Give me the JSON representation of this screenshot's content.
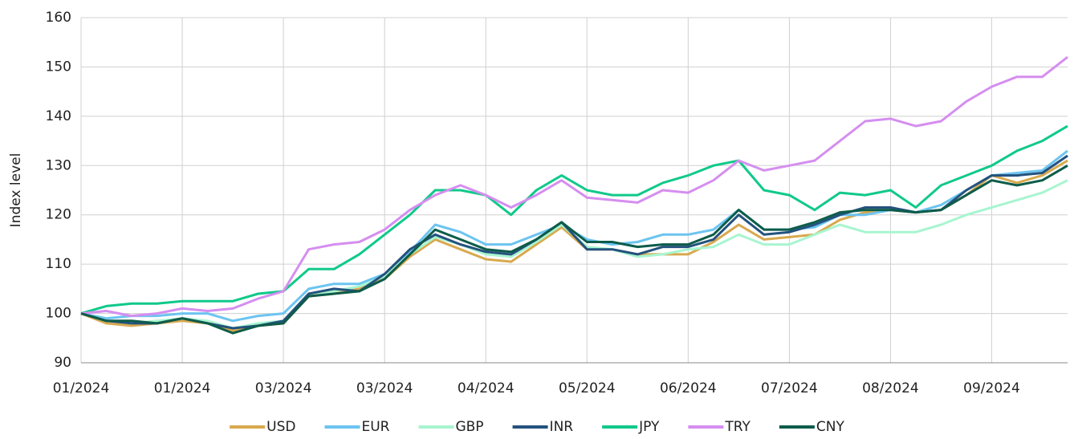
{
  "chart_data": {
    "type": "line",
    "y_label": "Index level",
    "categories": [
      "01/2024",
      null,
      null,
      null,
      "01/2024",
      null,
      null,
      null,
      "03/2024",
      null,
      null,
      null,
      "03/2024",
      null,
      null,
      null,
      "04/2024",
      null,
      null,
      null,
      "05/2024",
      null,
      null,
      null,
      "06/2024",
      null,
      null,
      null,
      "07/2024",
      null,
      null,
      null,
      "08/2024",
      null,
      null,
      null,
      "09/2024",
      null,
      null,
      null
    ],
    "ylim": [
      90,
      160
    ],
    "yticks": [
      90,
      100,
      110,
      120,
      130,
      140,
      150,
      160
    ],
    "grid": true,
    "series": [
      {
        "name": "USD",
        "color": "#d8a94e",
        "values": [
          100,
          98,
          97.5,
          98,
          98.5,
          98,
          96.5,
          97.5,
          98,
          103.5,
          104,
          105,
          107,
          111.5,
          115,
          113,
          111,
          110.5,
          114,
          117.5,
          113,
          113,
          112,
          112,
          112,
          114.5,
          118,
          115,
          115.5,
          116,
          119,
          120.5,
          121,
          120.5,
          121,
          124,
          128,
          126.5,
          128,
          131
        ]
      },
      {
        "name": "EUR",
        "color": "#6cc4f0",
        "values": [
          100,
          99,
          99.5,
          99.5,
          100,
          100,
          98.5,
          99.5,
          100,
          105,
          106,
          106,
          108,
          112.5,
          118,
          116.5,
          114,
          114,
          116,
          118,
          115,
          114,
          114.5,
          116,
          116,
          117,
          121,
          117,
          117,
          117.5,
          120,
          120,
          121,
          120.5,
          122,
          125,
          128,
          128.5,
          129,
          133
        ]
      },
      {
        "name": "GBP",
        "color": "#a8f5d0",
        "values": [
          100,
          98.5,
          98,
          98.5,
          99,
          98.5,
          97,
          98,
          98.5,
          104,
          104.5,
          105.5,
          107.5,
          112,
          115.5,
          114,
          112,
          111.5,
          114.5,
          118,
          113.5,
          113,
          111.5,
          112,
          113,
          113.5,
          116,
          114,
          114,
          116,
          118,
          116.5,
          116.5,
          116.5,
          118,
          120,
          121.5,
          123,
          124.5,
          127
        ]
      },
      {
        "name": "INR",
        "color": "#24527e",
        "values": [
          100,
          98.5,
          98,
          98,
          99,
          98,
          97,
          97.5,
          98.5,
          104,
          105,
          104.5,
          108,
          113,
          116,
          114,
          112.5,
          112,
          115,
          118.5,
          113,
          113,
          112,
          113.5,
          113.5,
          115,
          120,
          116,
          116.5,
          118,
          120,
          121.5,
          121.5,
          120.5,
          121,
          125,
          128,
          128,
          128.5,
          132
        ]
      },
      {
        "name": "JPY",
        "color": "#10c98a",
        "values": [
          100,
          101.5,
          102,
          102,
          102.5,
          102.5,
          102.5,
          104,
          104.5,
          109,
          109,
          112,
          116,
          120,
          125,
          125,
          124,
          120,
          125,
          128,
          125,
          124,
          124,
          126.5,
          128,
          130,
          131,
          125,
          124,
          121,
          124.5,
          124,
          125,
          121.5,
          126,
          128,
          130,
          133,
          135,
          138
        ]
      },
      {
        "name": "TRY",
        "color": "#d58ef0",
        "values": [
          100,
          100.5,
          99.5,
          100,
          101,
          100.5,
          101,
          103,
          104.5,
          113,
          114,
          114.5,
          117,
          121,
          124,
          126,
          124,
          121.5,
          124,
          127,
          123.5,
          123,
          122.5,
          125,
          124.5,
          127,
          131,
          129,
          130,
          131,
          135,
          139,
          139.5,
          138,
          139,
          143,
          146,
          148,
          148,
          152
        ]
      },
      {
        "name": "CNY",
        "color": "#0d5c4a",
        "values": [
          100,
          98.5,
          98.5,
          98,
          99,
          98,
          96,
          97.5,
          98,
          103.5,
          104,
          104.5,
          107,
          112,
          117,
          115,
          113,
          112.5,
          115,
          118.5,
          114.5,
          114.5,
          113.5,
          114,
          114,
          116,
          121,
          117,
          117,
          118.5,
          120.5,
          121,
          121,
          120.5,
          121,
          124,
          127,
          126,
          127,
          130
        ]
      }
    ]
  }
}
